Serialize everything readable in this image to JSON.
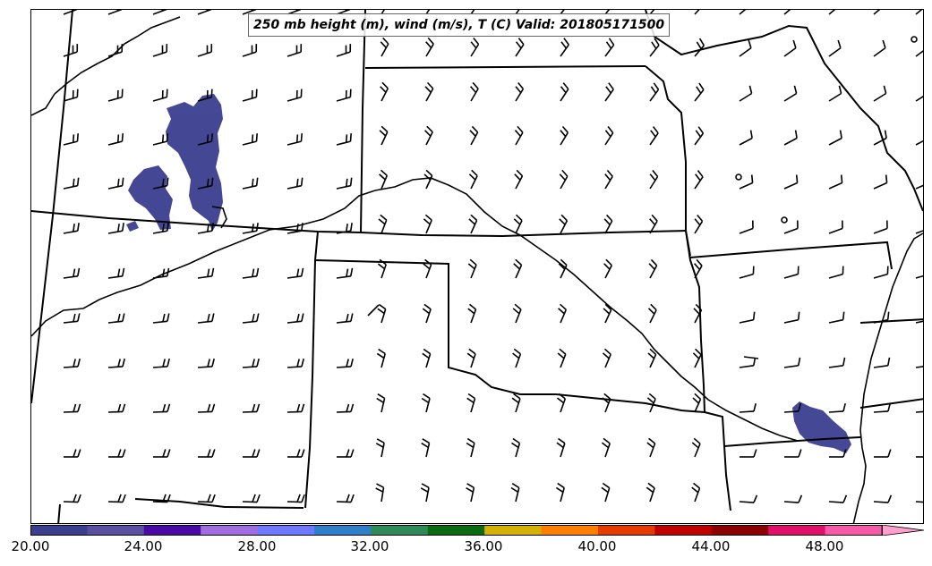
{
  "title": "250 mb height (m), wind (m/s), T (C) Valid: 201805171500",
  "colorbar": {
    "tick_labels": [
      "20.00",
      "24.00",
      "28.00",
      "32.00",
      "36.00",
      "40.00",
      "44.00",
      "48.00"
    ],
    "colors": [
      "#3b3f8f",
      "#5a4fa0",
      "#4a0aa6",
      "#a06ee0",
      "#6f79ff",
      "#2f7fc8",
      "#2e8b57",
      "#0a6b10",
      "#d4b106",
      "#ff7f00",
      "#e63b00",
      "#c00000",
      "#8b0000",
      "#e0106a",
      "#f75aa8",
      "#ff9fd0"
    ],
    "extend": "max"
  }
}
